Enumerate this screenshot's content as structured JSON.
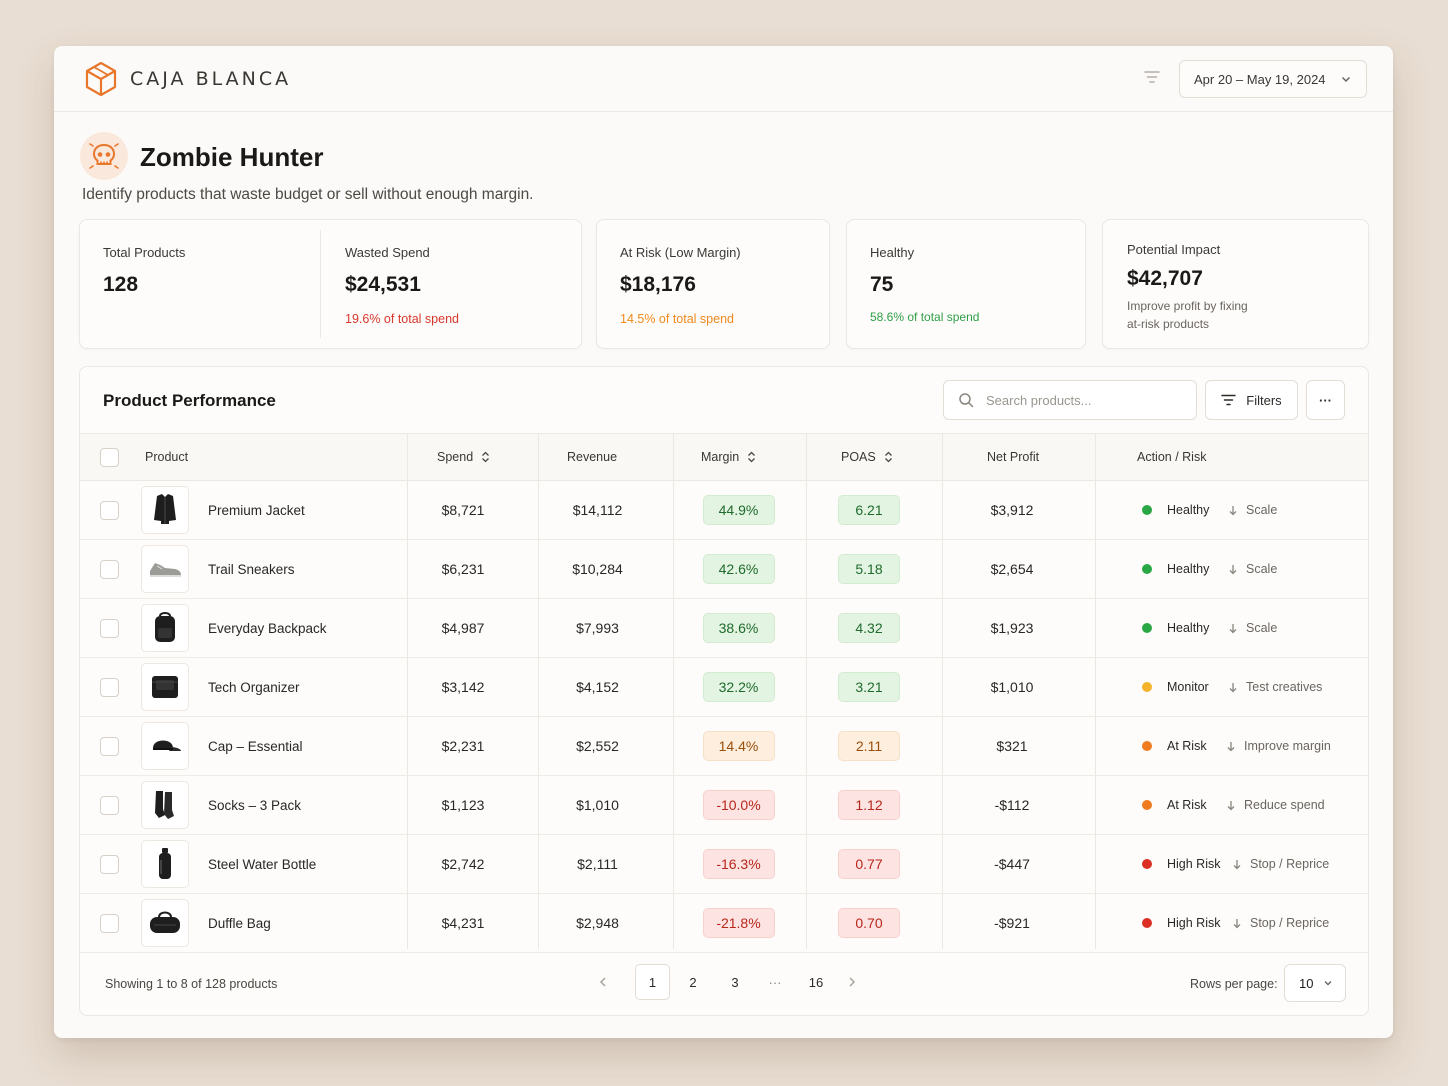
{
  "brand": {
    "name": "CAJA BLANCA"
  },
  "date_range": "Apr 20 – May 19, 2024",
  "page": {
    "title": "Zombie Hunter",
    "subtitle": "Identify products that waste budget or sell without enough margin."
  },
  "stats": {
    "total_products": {
      "label": "Total Products",
      "value": "128"
    },
    "wasted_spend": {
      "label": "Wasted Spend",
      "value": "$24,531",
      "note": "19.6% of total spend"
    },
    "at_risk": {
      "label": "At Risk (Low Margin)",
      "value": "$18,176",
      "note": "14.5% of total spend"
    },
    "healthy": {
      "label": "Healthy",
      "value": "75",
      "note": "58.6% of total spend"
    },
    "impact": {
      "label": "Potential Impact",
      "value": "$42,707",
      "note_line1": "Improve profit by fixing",
      "note_line2": "at-risk products"
    }
  },
  "table": {
    "title": "Product Performance",
    "search_placeholder": "Search products...",
    "filters_label": "Filters",
    "more_label": "···",
    "columns": {
      "product": "Product",
      "spend": "Spend",
      "revenue": "Revenue",
      "margin": "Margin",
      "poas": "POAS",
      "net_profit": "Net Profit",
      "action": "Action / Risk"
    },
    "rows": [
      {
        "name": "Premium Jacket",
        "spend": "$8,721",
        "revenue": "$14,112",
        "margin": "44.9%",
        "poas": "6.21",
        "net": "$3,912",
        "status": "Healthy",
        "action": "Scale",
        "tone": "green",
        "icon": "jacket-icon"
      },
      {
        "name": "Trail Sneakers",
        "spend": "$6,231",
        "revenue": "$10,284",
        "margin": "42.6%",
        "poas": "5.18",
        "net": "$2,654",
        "status": "Healthy",
        "action": "Scale",
        "tone": "green",
        "icon": "sneaker-icon"
      },
      {
        "name": "Everyday Backpack",
        "spend": "$4,987",
        "revenue": "$7,993",
        "margin": "38.6%",
        "poas": "4.32",
        "net": "$1,923",
        "status": "Healthy",
        "action": "Scale",
        "tone": "green",
        "icon": "backpack-icon"
      },
      {
        "name": "Tech Organizer",
        "spend": "$3,142",
        "revenue": "$4,152",
        "margin": "32.2%",
        "poas": "3.21",
        "net": "$1,010",
        "status": "Monitor",
        "action": "Test creatives",
        "tone": "green",
        "icon": "organizer-icon"
      },
      {
        "name": "Cap – Essential",
        "spend": "$2,231",
        "revenue": "$2,552",
        "margin": "14.4%",
        "poas": "2.11",
        "net": "$321",
        "status": "At Risk",
        "action": "Improve margin",
        "tone": "orange",
        "icon": "cap-icon"
      },
      {
        "name": "Socks – 3 Pack",
        "spend": "$1,123",
        "revenue": "$1,010",
        "margin": "-10.0%",
        "poas": "1.12",
        "net": "-$112",
        "status": "At Risk",
        "action": "Reduce spend",
        "tone": "red",
        "icon": "socks-icon"
      },
      {
        "name": "Steel Water Bottle",
        "spend": "$2,742",
        "revenue": "$2,111",
        "margin": "-16.3%",
        "poas": "0.77",
        "net": "-$447",
        "status": "High Risk",
        "action": "Stop / Reprice",
        "tone": "red",
        "icon": "bottle-icon"
      },
      {
        "name": "Duffle Bag",
        "spend": "$4,231",
        "revenue": "$2,948",
        "margin": "-21.8%",
        "poas": "0.70",
        "net": "-$921",
        "status": "High Risk",
        "action": "Stop / Reprice",
        "tone": "red",
        "icon": "duffle-icon"
      }
    ],
    "status_colors": {
      "Healthy": "#2aa745",
      "Monitor": "#f4b32a",
      "At Risk": "#f07a1e",
      "High Risk": "#dc2f24"
    }
  },
  "footer": {
    "showing": "Showing 1 to 8 of 128 products",
    "pages": [
      "1",
      "2",
      "3",
      "···",
      "16"
    ],
    "rows_per_page_label": "Rows per page:",
    "rows_per_page": "10"
  },
  "colors": {
    "accent": "#e8772b"
  }
}
